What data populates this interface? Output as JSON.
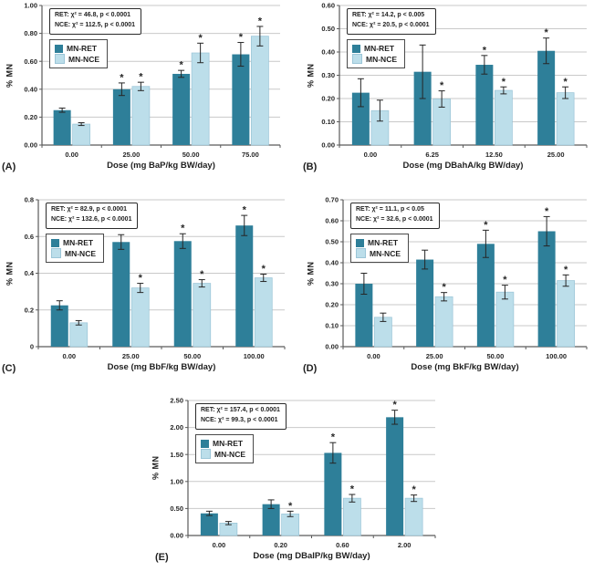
{
  "figure": {
    "sig_marker": "*",
    "background": "#FFFFFF"
  },
  "colors": {
    "mn_ret": "#2E7F99",
    "mn_nce": "#BCDEEA",
    "mn_nce_border": "#9CC6D8",
    "grid": "#C9C9C9",
    "axis": "#5A5A5A",
    "error_bar": "#262626",
    "text": "#1F1F1F"
  },
  "chart_data": [
    {
      "id": "A",
      "panel_label": "(A)",
      "type": "bar",
      "stats_box": [
        "RET: χ² = 46.8, p < 0.0001",
        "NCE: χ² = 112.5, p < 0.0001"
      ],
      "xlabel": "Dose (mg BaP/kg BW/day)",
      "ylabel": "% MN",
      "ylim": [
        0,
        1.0
      ],
      "yticks": [
        0,
        0.2,
        0.4,
        0.6,
        0.8,
        1.0
      ],
      "ytick_labels": [
        "0.00",
        "0.20",
        "0.40",
        "0.60",
        "0.80",
        "1.00"
      ],
      "categories": [
        "0.00",
        "25.00",
        "50.00",
        "75.00"
      ],
      "grid": true,
      "legend_position": "upper-left-inside",
      "series": [
        {
          "name": "MN-RET",
          "values": [
            0.25,
            0.4,
            0.51,
            0.65
          ],
          "errors": [
            0.015,
            0.045,
            0.025,
            0.085
          ],
          "significant": [
            false,
            true,
            true,
            true
          ]
        },
        {
          "name": "MN-NCE",
          "values": [
            0.15,
            0.42,
            0.66,
            0.78
          ],
          "errors": [
            0.01,
            0.03,
            0.07,
            0.07
          ],
          "significant": [
            false,
            true,
            true,
            true
          ]
        }
      ]
    },
    {
      "id": "B",
      "panel_label": "(B)",
      "type": "bar",
      "stats_box": [
        "RET: χ² = 14.2, p < 0.005",
        "NCE: χ² = 20.5, p < 0.0001"
      ],
      "xlabel": "Dose (mg DBahA/kg BW/day)",
      "ylabel": "% MN",
      "ylim": [
        0,
        0.6
      ],
      "yticks": [
        0,
        0.1,
        0.2,
        0.3,
        0.4,
        0.5,
        0.6
      ],
      "ytick_labels": [
        "0.00",
        "0.10",
        "0.20",
        "0.30",
        "0.40",
        "0.50",
        "0.60"
      ],
      "categories": [
        "0.00",
        "6.25",
        "12.50",
        "25.00"
      ],
      "grid": true,
      "legend_position": "upper-left-inside",
      "series": [
        {
          "name": "MN-RET",
          "values": [
            0.225,
            0.315,
            0.345,
            0.405
          ],
          "errors": [
            0.06,
            0.115,
            0.04,
            0.055
          ],
          "significant": [
            false,
            false,
            true,
            true
          ]
        },
        {
          "name": "MN-NCE",
          "values": [
            0.148,
            0.198,
            0.235,
            0.225
          ],
          "errors": [
            0.045,
            0.035,
            0.015,
            0.025
          ],
          "significant": [
            false,
            true,
            true,
            true
          ]
        }
      ]
    },
    {
      "id": "C",
      "panel_label": "(C)",
      "type": "bar",
      "stats_box": [
        "RET: χ² = 82.9, p < 0.0001",
        "NCE: χ² = 132.6, p < 0.0001"
      ],
      "xlabel": "Dose (mg BbF/kg BW/day)",
      "ylabel": "% MN",
      "ylim": [
        0,
        0.8
      ],
      "yticks": [
        0,
        0.2,
        0.4,
        0.6,
        0.8
      ],
      "ytick_labels": [
        "0",
        "0.2",
        "0.4",
        "0.6",
        "0.8"
      ],
      "categories": [
        "0.00",
        "25.00",
        "50.00",
        "100.00"
      ],
      "grid": true,
      "legend_position": "upper-left-inside",
      "series": [
        {
          "name": "MN-RET",
          "values": [
            0.225,
            0.57,
            0.575,
            0.66
          ],
          "errors": [
            0.025,
            0.04,
            0.04,
            0.055
          ],
          "significant": [
            false,
            true,
            true,
            true
          ]
        },
        {
          "name": "MN-NCE",
          "values": [
            0.13,
            0.32,
            0.345,
            0.375
          ],
          "errors": [
            0.012,
            0.025,
            0.02,
            0.02
          ],
          "significant": [
            false,
            true,
            true,
            true
          ]
        }
      ]
    },
    {
      "id": "D",
      "panel_label": "(D)",
      "type": "bar",
      "stats_box": [
        "RET: χ² = 11.1, p < 0.05",
        "NCE: χ² = 32.6, p < 0.0001"
      ],
      "xlabel": "Dose (mg BkF/kg BW/day)",
      "ylabel": "% MN",
      "ylim": [
        0,
        0.7
      ],
      "yticks": [
        0,
        0.1,
        0.2,
        0.3,
        0.4,
        0.5,
        0.6,
        0.7
      ],
      "ytick_labels": [
        "0.00",
        "0.10",
        "0.20",
        "0.30",
        "0.40",
        "0.50",
        "0.60",
        "0.70"
      ],
      "categories": [
        "0.00",
        "25.00",
        "50.00",
        "100.00"
      ],
      "grid": true,
      "legend_position": "upper-left-inside",
      "series": [
        {
          "name": "MN-RET",
          "values": [
            0.3,
            0.415,
            0.49,
            0.55
          ],
          "errors": [
            0.05,
            0.045,
            0.065,
            0.07
          ],
          "significant": [
            false,
            false,
            true,
            true
          ]
        },
        {
          "name": "MN-NCE",
          "values": [
            0.14,
            0.238,
            0.26,
            0.315
          ],
          "errors": [
            0.02,
            0.02,
            0.033,
            0.027
          ],
          "significant": [
            false,
            true,
            true,
            true
          ]
        }
      ]
    },
    {
      "id": "E",
      "panel_label": "(E)",
      "type": "bar",
      "stats_box": [
        "RET: χ² = 157.4, p < 0.0001",
        "NCE: χ² = 99.3, p < 0.0001"
      ],
      "xlabel": "Dose (mg DBalP/kg BW/day)",
      "ylabel": "% MN",
      "ylim": [
        0,
        2.5
      ],
      "yticks": [
        0,
        0.5,
        1.0,
        1.5,
        2.0,
        2.5
      ],
      "ytick_labels": [
        "0.00",
        "0.50",
        "1.00",
        "1.50",
        "2.00",
        "2.50"
      ],
      "categories": [
        "0.00",
        "0.20",
        "0.60",
        "2.00"
      ],
      "grid": true,
      "legend_position": "upper-left-inside",
      "series": [
        {
          "name": "MN-RET",
          "values": [
            0.41,
            0.58,
            1.53,
            2.19
          ],
          "errors": [
            0.04,
            0.08,
            0.19,
            0.13
          ],
          "significant": [
            false,
            false,
            true,
            true
          ]
        },
        {
          "name": "MN-NCE",
          "values": [
            0.23,
            0.4,
            0.69,
            0.69
          ],
          "errors": [
            0.03,
            0.05,
            0.07,
            0.06
          ],
          "significant": [
            false,
            true,
            true,
            true
          ]
        }
      ]
    }
  ]
}
